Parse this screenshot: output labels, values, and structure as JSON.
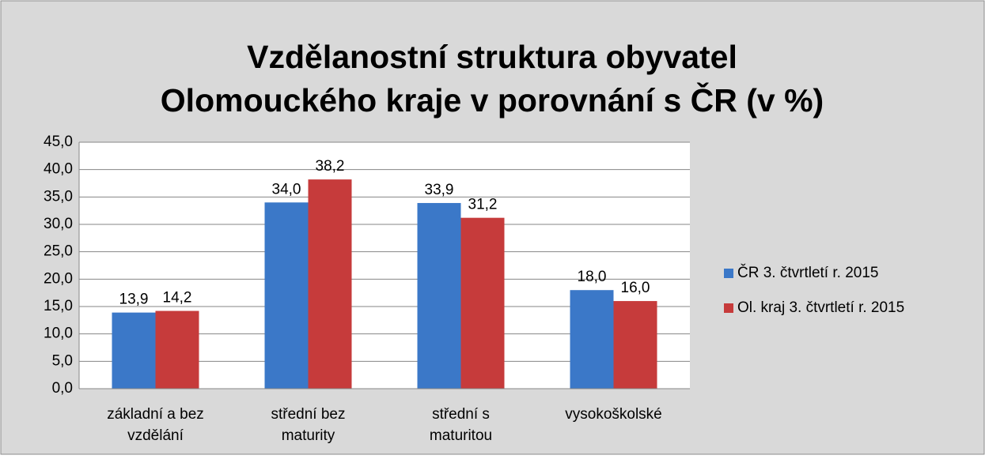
{
  "chart_data": {
    "type": "bar",
    "title": "Vzdělanostní struktura obyvatel Olomouckého kraje v porovnání s ČR (v %)",
    "categories": [
      "základní a bez vzdělání",
      "střední bez maturity",
      "střední s maturitou",
      "vysokoškolské"
    ],
    "series": [
      {
        "name": "ČR 3. čtvrtletí r. 2015",
        "color": "#3b78c8",
        "values": [
          13.9,
          34.0,
          33.9,
          18.0
        ],
        "value_labels": [
          "13,9",
          "34,0",
          "33,9",
          "18,0"
        ]
      },
      {
        "name": "Ol. kraj 3. čtvrtletí r. 2015",
        "color": "#c63b3b",
        "values": [
          14.2,
          38.2,
          31.2,
          16.0
        ],
        "value_labels": [
          "14,2",
          "38,2",
          "31,2",
          "16,0"
        ]
      }
    ],
    "ylim": [
      0,
      45
    ],
    "yticks": [
      {
        "value": 0,
        "label": "0,0"
      },
      {
        "value": 5,
        "label": "5,0"
      },
      {
        "value": 10,
        "label": "10,0"
      },
      {
        "value": 15,
        "label": "15,0"
      },
      {
        "value": 20,
        "label": "20,0"
      },
      {
        "value": 25,
        "label": "25,0"
      },
      {
        "value": 30,
        "label": "30,0"
      },
      {
        "value": 35,
        "label": "35,0"
      },
      {
        "value": 40,
        "label": "40,0"
      },
      {
        "value": 45,
        "label": "45,0"
      }
    ],
    "grid": true,
    "legend": "right"
  }
}
